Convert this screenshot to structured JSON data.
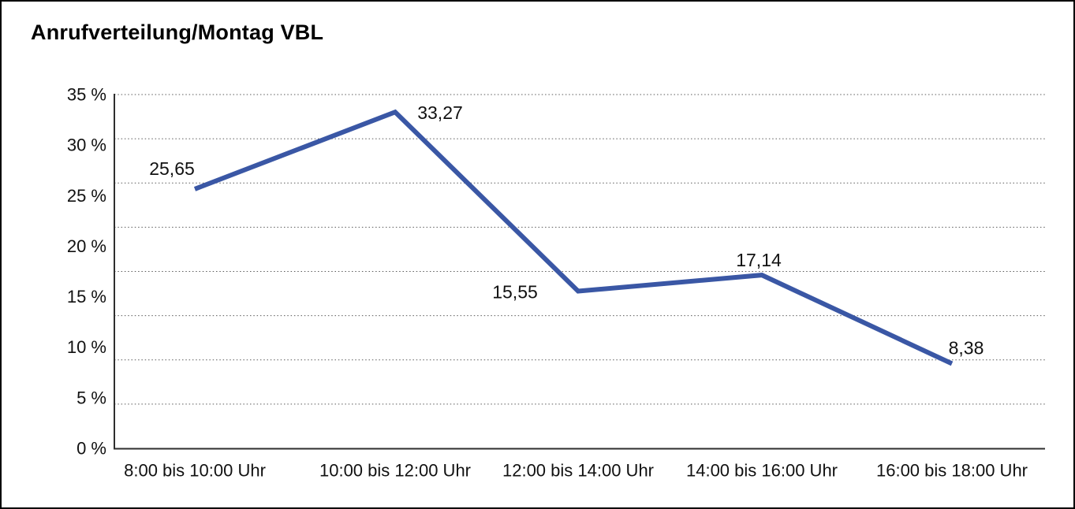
{
  "window": {
    "background": "#ffffff",
    "border_color": "#000000"
  },
  "title": "Anrufverteilung/Montag VBL",
  "chart_data": {
    "type": "line",
    "title": "Anrufverteilung/Montag VBL",
    "categories": [
      "8:00 bis 10:00 Uhr",
      "10:00 bis 12:00 Uhr",
      "12:00 bis 14:00 Uhr",
      "14:00 bis 16:00 Uhr",
      "16:00 bis 18:00 Uhr"
    ],
    "values": [
      25.65,
      33.27,
      15.55,
      17.14,
      8.38
    ],
    "value_labels": [
      "25,65",
      "33,27",
      "15,55",
      "17,14",
      "8,38"
    ],
    "xlabel": "",
    "ylabel": "",
    "ylim": [
      0,
      35
    ],
    "y_ticks": [
      0,
      5,
      10,
      15,
      20,
      25,
      30,
      35
    ],
    "y_tick_labels": [
      "0 %",
      "5 %",
      "10 %",
      "15 %",
      "20 %",
      "25 %",
      "30 %",
      "35 %"
    ],
    "grid": true,
    "y_grid_divisions": 8,
    "grid_style": "dotted",
    "legend": "none",
    "line_color": "#3A57A5",
    "axis_color": "#2e2e2e",
    "text_color": "#111111"
  }
}
